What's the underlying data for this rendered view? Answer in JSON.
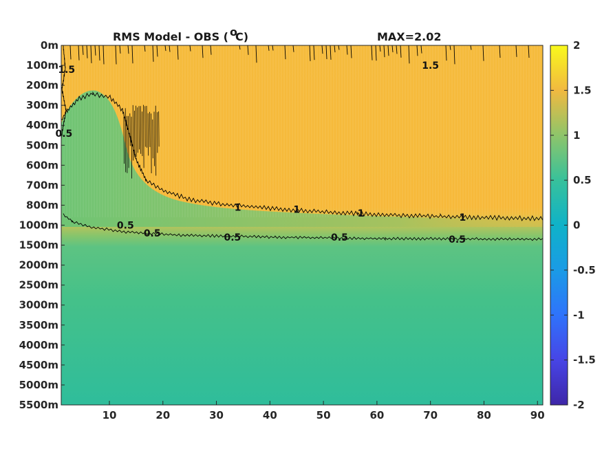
{
  "chart_data": {
    "type": "heatmap",
    "title": "RMS Model - OBS (",
    "title_unit_sup": "o",
    "title_unit_tail": "C)",
    "max_label": "MAX=2.02",
    "x_ticks": [
      10,
      20,
      30,
      40,
      50,
      60,
      70,
      80,
      90
    ],
    "xlim": [
      1,
      91
    ],
    "depth_labels": [
      "0m",
      "100m",
      "200m",
      "300m",
      "400m",
      "500m",
      "600m",
      "700m",
      "800m",
      "1000m",
      "1500m",
      "2000m",
      "2500m",
      "3000m",
      "3500m",
      "4000m",
      "4500m",
      "5000m",
      "5500m"
    ],
    "colorbar": {
      "clim": [
        -2,
        2
      ],
      "ticks": [
        2,
        1.5,
        1,
        0.5,
        0,
        -0.5,
        -1,
        -1.5,
        -2
      ],
      "tick_labels": [
        "2",
        "1.5",
        "1",
        "0.5",
        "0",
        "-0.5",
        "-1",
        "-1.5",
        "-2"
      ],
      "colormap": "parula"
    },
    "contour_levels": [
      0.5,
      1,
      1.5
    ],
    "contour_labels": [
      {
        "text": "1.5",
        "x": 70,
        "depth_index": 1
      },
      {
        "text": "1.5",
        "x": 2,
        "depth_index": 1.2
      },
      {
        "text": "1",
        "x": 34,
        "depth_index": 8.1
      },
      {
        "text": "1",
        "x": 45,
        "depth_index": 8.2
      },
      {
        "text": "1",
        "x": 57,
        "depth_index": 8.4
      },
      {
        "text": "1",
        "x": 76,
        "depth_index": 8.6
      },
      {
        "text": "0.5",
        "x": 13,
        "depth_index": 9.0
      },
      {
        "text": "0.5",
        "x": 18,
        "depth_index": 9.4
      },
      {
        "text": "0.5",
        "x": 33,
        "depth_index": 9.6
      },
      {
        "text": "0.5",
        "x": 53,
        "depth_index": 9.6
      },
      {
        "text": "0.5",
        "x": 75,
        "depth_index": 9.7
      },
      {
        "text": "0.5",
        "x": 1.5,
        "depth_index": 4.4
      }
    ],
    "field_description_values": {
      "upper_layer_rms": 1.2,
      "deep_layer_rms": 0.6,
      "max": 2.02
    }
  }
}
